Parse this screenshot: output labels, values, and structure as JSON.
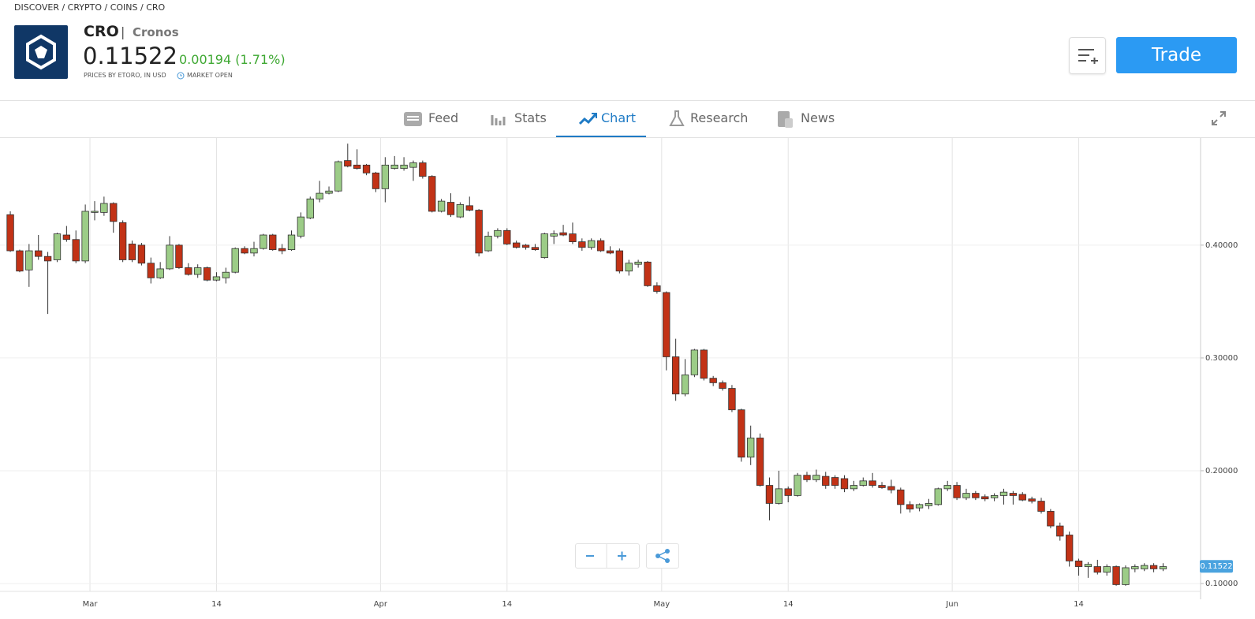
{
  "breadcrumb": "DISCOVER / CRYPTO / COINS / CRO",
  "header": {
    "symbol": "CRO",
    "separator": "|",
    "name": "Cronos",
    "change": "0.00194 (1.71%)",
    "source": "PRICES BY ETORO, IN USD",
    "status": "MARKET OPEN"
  },
  "trade_button": "Trade",
  "tabs": [
    "Feed",
    "Stats",
    "Chart",
    "Research",
    "News"
  ],
  "active_tab": 2,
  "chart_data": {
    "type": "candlestick",
    "up_color": "#9ccc87",
    "down_color": "#c23216",
    "outline_color": "#333333",
    "grid": true,
    "last_price": {
      "value": 0.11522,
      "label": "0.11522"
    },
    "xlim": [
      -9.1,
      119
    ],
    "ylim": [
      0.093,
      0.495
    ],
    "xticks": [
      {
        "value": 0.5,
        "label": "Mar"
      },
      {
        "value": 14,
        "label": "14"
      },
      {
        "value": 31.5,
        "label": "Apr"
      },
      {
        "value": 45,
        "label": "14"
      },
      {
        "value": 61.5,
        "label": "May"
      },
      {
        "value": 75,
        "label": "14"
      },
      {
        "value": 92.5,
        "label": "Jun"
      },
      {
        "value": 106,
        "label": "14"
      }
    ],
    "yticks": [
      {
        "value": 0.1,
        "label": "0.10000"
      },
      {
        "value": 0.2,
        "label": "0.20000"
      },
      {
        "value": 0.3,
        "label": "0.30000"
      },
      {
        "value": 0.4,
        "label": "0.40000"
      }
    ],
    "x": [
      -8,
      -7,
      -6,
      -5,
      -4,
      -3,
      -2,
      -1,
      0,
      1,
      2,
      3,
      4,
      5,
      6,
      7,
      8,
      9,
      10,
      11,
      12,
      13,
      14,
      15,
      16,
      17,
      18,
      19,
      20,
      21,
      22,
      23,
      24,
      25,
      26,
      27,
      28,
      29,
      30,
      31,
      32,
      33,
      34,
      35,
      36,
      37,
      38,
      39,
      40,
      41,
      42,
      43,
      44,
      45,
      46,
      47,
      48,
      49,
      50,
      51,
      52,
      53,
      54,
      55,
      56,
      57,
      58,
      59,
      60,
      61,
      62,
      63,
      64,
      65,
      66,
      67,
      68,
      69,
      70,
      71,
      72,
      73,
      74,
      75,
      76,
      77,
      78,
      79,
      80,
      81,
      82,
      83,
      84,
      85,
      86,
      87,
      88,
      89,
      90,
      91,
      92,
      93,
      94,
      95,
      96,
      97,
      98,
      99,
      100,
      101,
      102,
      103,
      104,
      105,
      106,
      107,
      108,
      109,
      110,
      111,
      112,
      113,
      114,
      115
    ],
    "open": [
      0.427,
      0.395,
      0.378,
      0.395,
      0.39,
      0.387,
      0.409,
      0.405,
      0.386,
      0.429,
      0.429,
      0.437,
      0.42,
      0.401,
      0.4,
      0.384,
      0.371,
      0.379,
      0.4,
      0.38,
      0.374,
      0.38,
      0.369,
      0.371,
      0.376,
      0.397,
      0.393,
      0.397,
      0.409,
      0.397,
      0.396,
      0.408,
      0.424,
      0.441,
      0.446,
      0.448,
      0.475,
      0.471,
      0.471,
      0.464,
      0.45,
      0.468,
      0.468,
      0.469,
      0.473,
      0.461,
      0.43,
      0.438,
      0.425,
      0.435,
      0.431,
      0.395,
      0.408,
      0.413,
      0.402,
      0.4,
      0.398,
      0.389,
      0.408,
      0.411,
      0.41,
      0.403,
      0.398,
      0.404,
      0.395,
      0.395,
      0.377,
      0.383,
      0.385,
      0.364,
      0.358,
      0.301,
      0.268,
      0.285,
      0.307,
      0.282,
      0.278,
      0.273,
      0.254,
      0.212,
      0.229,
      0.187,
      0.171,
      0.184,
      0.178,
      0.196,
      0.192,
      0.195,
      0.194,
      0.193,
      0.184,
      0.187,
      0.191,
      0.187,
      0.186,
      0.183,
      0.17,
      0.167,
      0.169,
      0.17,
      0.184,
      0.187,
      0.176,
      0.18,
      0.177,
      0.176,
      0.178,
      0.18,
      0.179,
      0.175,
      0.173,
      0.164,
      0.151,
      0.143,
      0.12,
      0.115,
      0.115,
      0.11,
      0.115,
      0.099,
      0.113,
      0.113,
      0.116,
      0.113
    ],
    "high": [
      0.43,
      0.396,
      0.401,
      0.409,
      0.394,
      0.411,
      0.417,
      0.413,
      0.436,
      0.439,
      0.443,
      0.438,
      0.422,
      0.404,
      0.402,
      0.389,
      0.385,
      0.408,
      0.401,
      0.384,
      0.383,
      0.381,
      0.376,
      0.38,
      0.398,
      0.399,
      0.403,
      0.41,
      0.41,
      0.401,
      0.413,
      0.429,
      0.443,
      0.457,
      0.452,
      0.475,
      0.49,
      0.485,
      0.472,
      0.465,
      0.478,
      0.479,
      0.478,
      0.475,
      0.475,
      0.462,
      0.441,
      0.446,
      0.438,
      0.443,
      0.432,
      0.412,
      0.415,
      0.415,
      0.404,
      0.401,
      0.401,
      0.411,
      0.413,
      0.418,
      0.42,
      0.406,
      0.406,
      0.406,
      0.399,
      0.397,
      0.387,
      0.387,
      0.386,
      0.367,
      0.359,
      0.317,
      0.299,
      0.308,
      0.308,
      0.284,
      0.28,
      0.276,
      0.255,
      0.24,
      0.233,
      0.194,
      0.2,
      0.186,
      0.198,
      0.199,
      0.201,
      0.199,
      0.196,
      0.196,
      0.191,
      0.194,
      0.198,
      0.19,
      0.192,
      0.185,
      0.173,
      0.171,
      0.175,
      0.185,
      0.191,
      0.19,
      0.184,
      0.182,
      0.179,
      0.18,
      0.184,
      0.182,
      0.181,
      0.177,
      0.176,
      0.166,
      0.154,
      0.146,
      0.122,
      0.119,
      0.121,
      0.117,
      0.116,
      0.116,
      0.117,
      0.118,
      0.118,
      0.118
    ],
    "low": [
      0.394,
      0.376,
      0.363,
      0.387,
      0.339,
      0.385,
      0.403,
      0.384,
      0.384,
      0.422,
      0.426,
      0.411,
      0.385,
      0.385,
      0.382,
      0.366,
      0.37,
      0.378,
      0.379,
      0.373,
      0.371,
      0.368,
      0.368,
      0.366,
      0.375,
      0.392,
      0.39,
      0.396,
      0.395,
      0.392,
      0.395,
      0.406,
      0.423,
      0.438,
      0.445,
      0.447,
      0.469,
      0.467,
      0.462,
      0.447,
      0.438,
      0.467,
      0.466,
      0.457,
      0.459,
      0.429,
      0.429,
      0.425,
      0.424,
      0.43,
      0.39,
      0.394,
      0.406,
      0.4,
      0.397,
      0.396,
      0.395,
      0.388,
      0.401,
      0.408,
      0.401,
      0.395,
      0.396,
      0.394,
      0.392,
      0.375,
      0.373,
      0.38,
      0.363,
      0.357,
      0.289,
      0.262,
      0.266,
      0.283,
      0.28,
      0.275,
      0.271,
      0.252,
      0.208,
      0.205,
      0.186,
      0.156,
      0.17,
      0.172,
      0.177,
      0.19,
      0.19,
      0.184,
      0.184,
      0.181,
      0.182,
      0.186,
      0.185,
      0.184,
      0.18,
      0.162,
      0.163,
      0.164,
      0.166,
      0.169,
      0.182,
      0.174,
      0.174,
      0.174,
      0.173,
      0.173,
      0.17,
      0.17,
      0.173,
      0.171,
      0.162,
      0.149,
      0.138,
      0.115,
      0.107,
      0.105,
      0.108,
      0.107,
      0.098,
      0.098,
      0.11,
      0.111,
      0.11,
      0.111
    ],
    "close": [
      0.395,
      0.377,
      0.395,
      0.39,
      0.386,
      0.41,
      0.405,
      0.386,
      0.43,
      0.43,
      0.437,
      0.421,
      0.387,
      0.387,
      0.384,
      0.371,
      0.379,
      0.4,
      0.38,
      0.374,
      0.38,
      0.369,
      0.372,
      0.376,
      0.397,
      0.393,
      0.397,
      0.409,
      0.396,
      0.395,
      0.409,
      0.425,
      0.441,
      0.446,
      0.448,
      0.474,
      0.47,
      0.468,
      0.464,
      0.45,
      0.471,
      0.471,
      0.471,
      0.473,
      0.461,
      0.43,
      0.439,
      0.427,
      0.436,
      0.431,
      0.393,
      0.408,
      0.413,
      0.401,
      0.398,
      0.398,
      0.396,
      0.41,
      0.41,
      0.409,
      0.403,
      0.398,
      0.404,
      0.395,
      0.393,
      0.377,
      0.384,
      0.385,
      0.364,
      0.359,
      0.301,
      0.268,
      0.285,
      0.307,
      0.282,
      0.278,
      0.273,
      0.254,
      0.212,
      0.229,
      0.187,
      0.171,
      0.184,
      0.178,
      0.196,
      0.192,
      0.196,
      0.187,
      0.187,
      0.184,
      0.187,
      0.191,
      0.187,
      0.185,
      0.183,
      0.17,
      0.166,
      0.17,
      0.171,
      0.184,
      0.187,
      0.176,
      0.18,
      0.176,
      0.175,
      0.178,
      0.181,
      0.178,
      0.174,
      0.173,
      0.164,
      0.151,
      0.142,
      0.12,
      0.115,
      0.117,
      0.11,
      0.115,
      0.099,
      0.114,
      0.115,
      0.116,
      0.113,
      0.115
    ]
  }
}
